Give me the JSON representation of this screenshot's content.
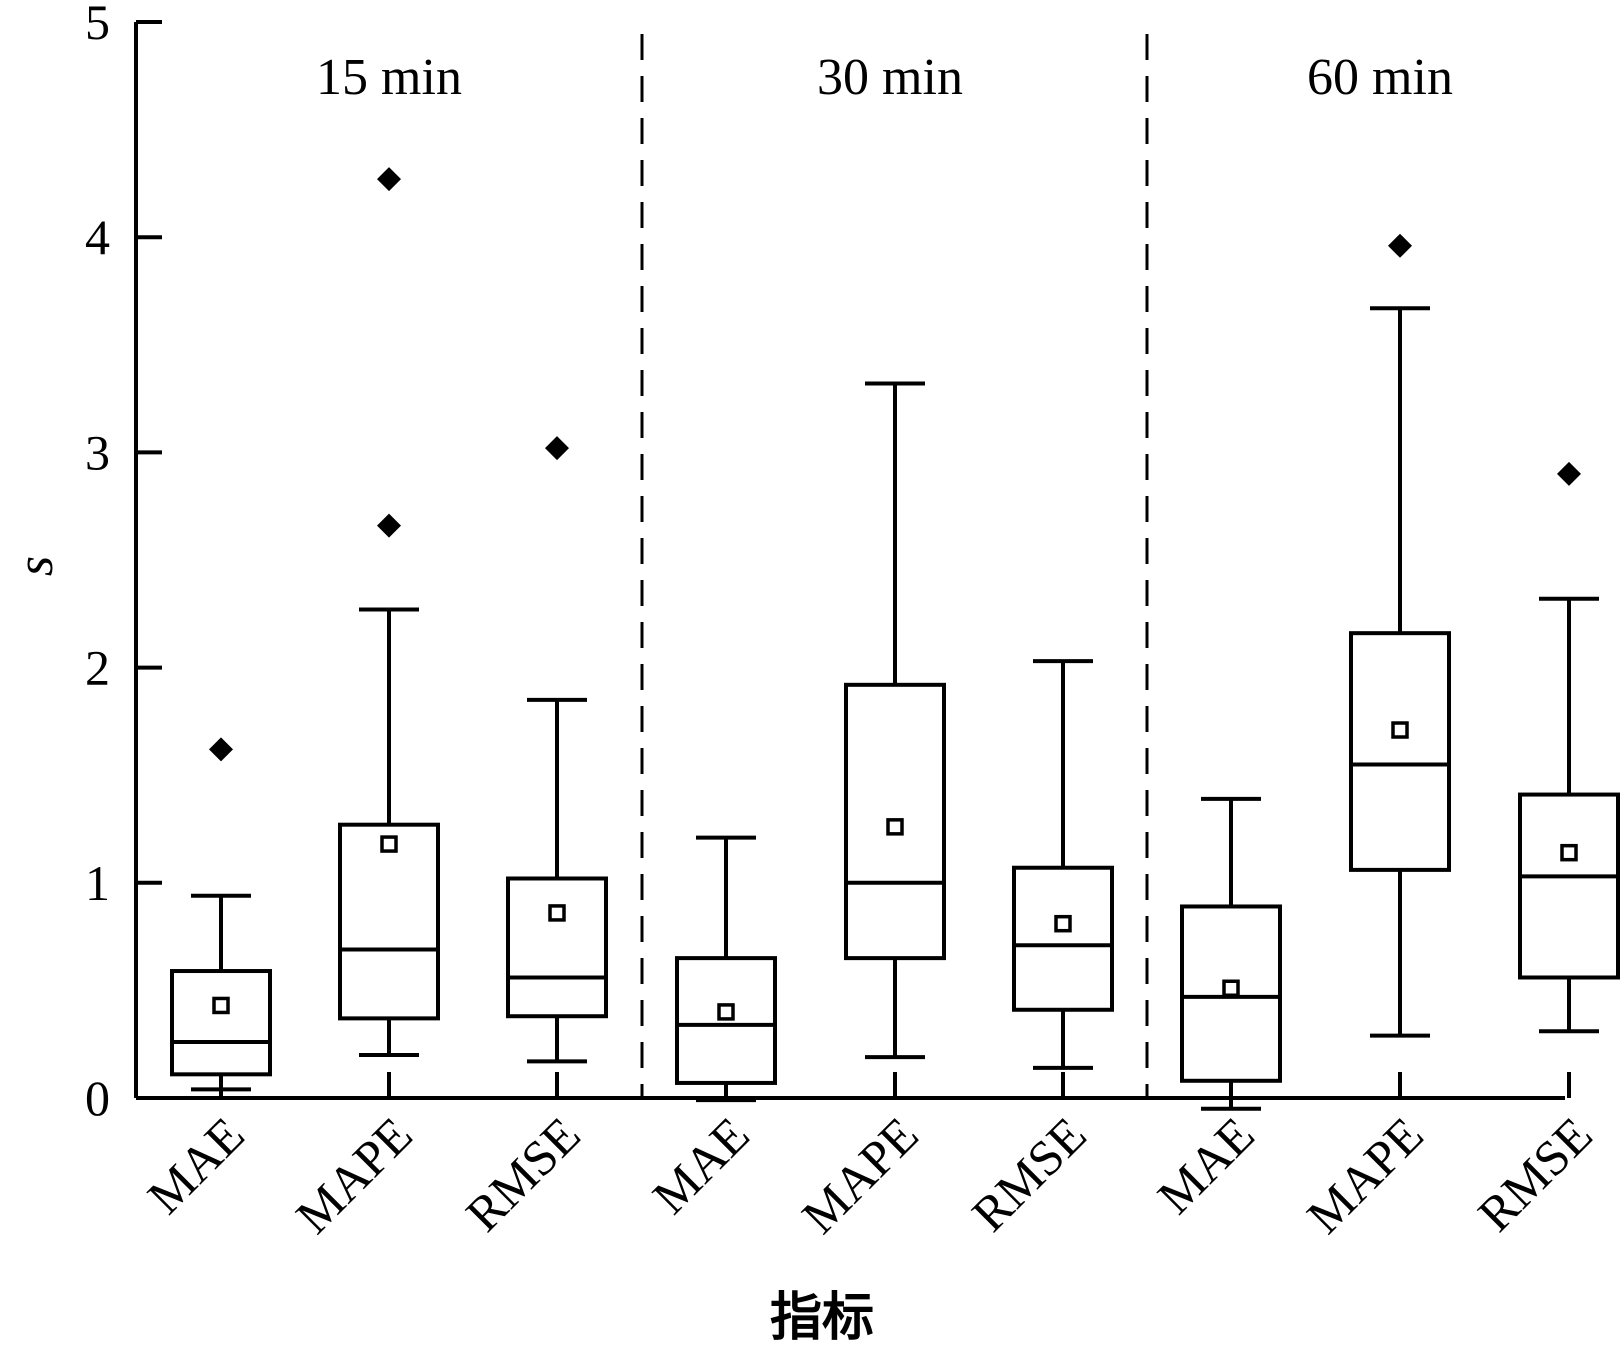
{
  "chart_data": {
    "type": "box",
    "ylabel": "s",
    "xlabel": "指标",
    "ylim": [
      0,
      5
    ],
    "yticks": [
      "0",
      "1",
      "2",
      "3",
      "4",
      "5"
    ],
    "grid": false,
    "groups": [
      {
        "label": "15 min",
        "boxes": [
          {
            "category": "MAE",
            "whisker_low": 0.04,
            "q1": 0.11,
            "median": 0.26,
            "q3": 0.59,
            "whisker_high": 0.94,
            "mean": 0.43,
            "outliers": [
              1.62
            ]
          },
          {
            "category": "MAPE",
            "whisker_low": 0.2,
            "q1": 0.37,
            "median": 0.69,
            "q3": 1.27,
            "whisker_high": 2.27,
            "mean": 1.18,
            "outliers": [
              4.27,
              2.66
            ]
          },
          {
            "category": "RMSE",
            "whisker_low": 0.17,
            "q1": 0.38,
            "median": 0.56,
            "q3": 1.02,
            "whisker_high": 1.85,
            "mean": 0.86,
            "outliers": [
              3.02
            ]
          }
        ]
      },
      {
        "label": "30 min",
        "boxes": [
          {
            "category": "MAE",
            "whisker_low": -0.01,
            "q1": 0.07,
            "median": 0.34,
            "q3": 0.65,
            "whisker_high": 1.21,
            "mean": 0.4,
            "outliers": []
          },
          {
            "category": "MAPE",
            "whisker_low": 0.19,
            "q1": 0.65,
            "median": 1.0,
            "q3": 1.92,
            "whisker_high": 3.32,
            "mean": 1.26,
            "outliers": []
          },
          {
            "category": "RMSE",
            "whisker_low": 0.14,
            "q1": 0.41,
            "median": 0.71,
            "q3": 1.07,
            "whisker_high": 2.03,
            "mean": 0.81,
            "outliers": []
          }
        ]
      },
      {
        "label": "60 min",
        "boxes": [
          {
            "category": "MAE",
            "whisker_low": -0.05,
            "q1": 0.08,
            "median": 0.47,
            "q3": 0.89,
            "whisker_high": 1.39,
            "mean": 0.51,
            "outliers": []
          },
          {
            "category": "MAPE",
            "whisker_low": 0.29,
            "q1": 1.06,
            "median": 1.55,
            "q3": 2.16,
            "whisker_high": 3.67,
            "mean": 1.71,
            "outliers": [
              3.96
            ]
          },
          {
            "category": "RMSE",
            "whisker_low": 0.31,
            "q1": 0.56,
            "median": 1.03,
            "q3": 1.41,
            "whisker_high": 2.32,
            "mean": 1.14,
            "outliers": [
              2.9
            ]
          }
        ]
      }
    ]
  }
}
